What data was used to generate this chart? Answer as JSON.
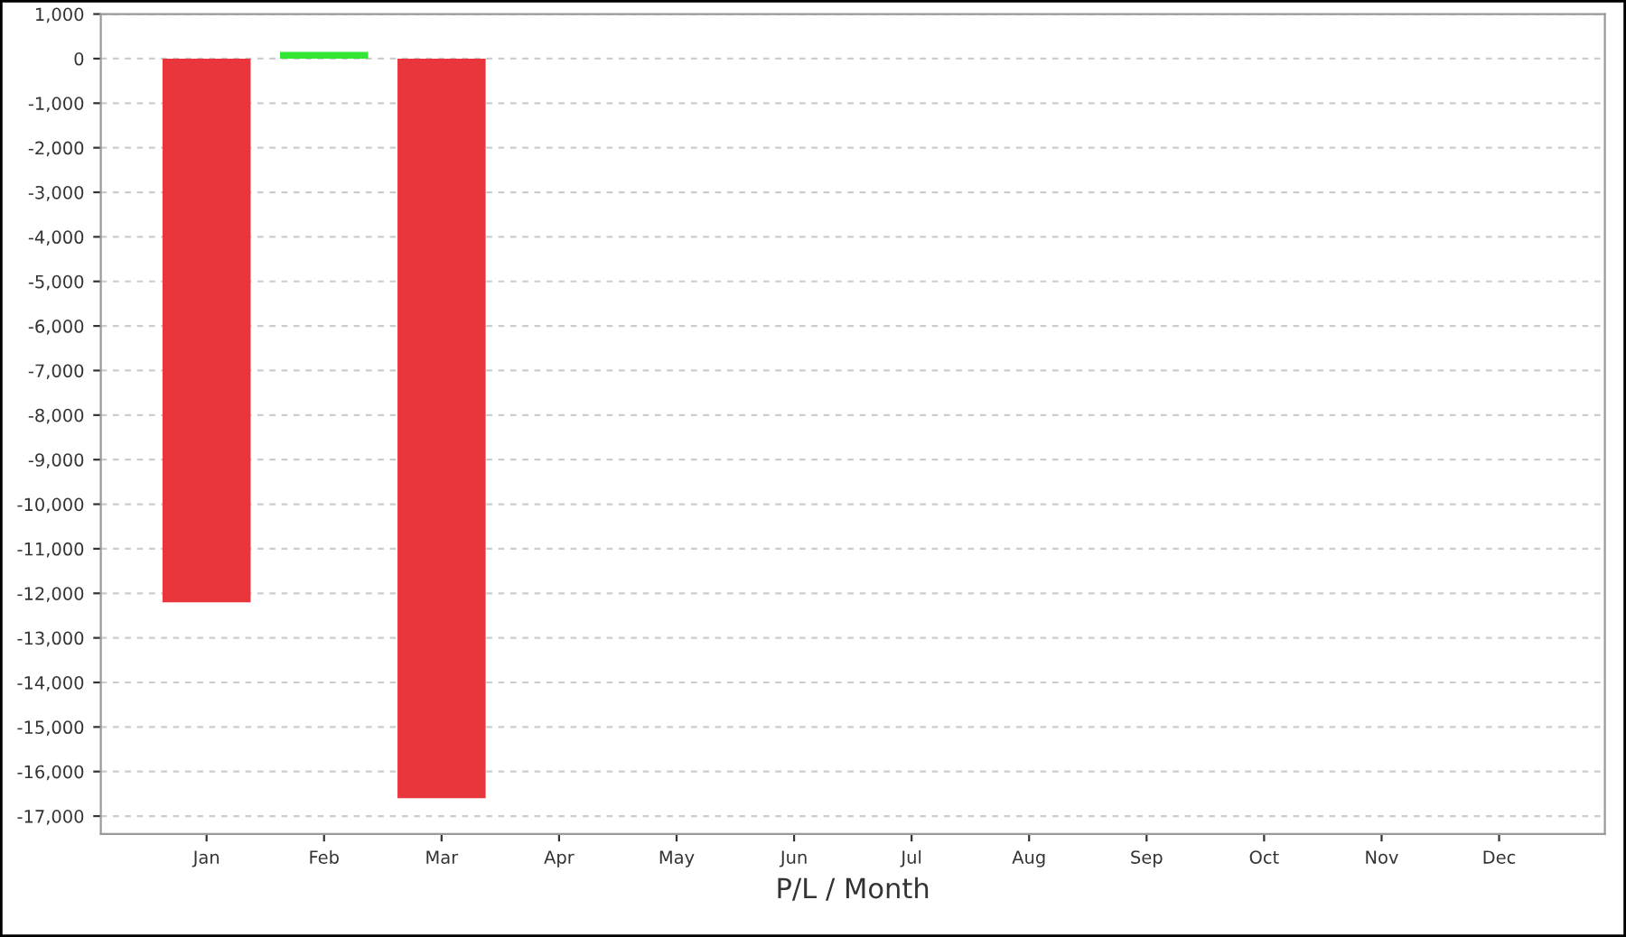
{
  "chart_data": {
    "type": "bar",
    "xlabel": "P/L / Month",
    "categories": [
      "Jan",
      "Feb",
      "Mar",
      "Apr",
      "May",
      "Jun",
      "Jul",
      "Aug",
      "Sep",
      "Oct",
      "Nov",
      "Dec"
    ],
    "values": [
      -12200,
      150,
      -16600,
      null,
      null,
      null,
      null,
      null,
      null,
      null,
      null,
      null
    ],
    "colors": [
      "#e8363c",
      "#33e633",
      "#e8363c",
      "#e8363c",
      "#e8363c",
      "#e8363c",
      "#e8363c",
      "#e8363c",
      "#e8363c",
      "#e8363c",
      "#e8363c",
      "#e8363c"
    ],
    "ylim": [
      -17400,
      1000
    ],
    "yticks": [
      {
        "value": 1000,
        "label": "1,000"
      },
      0,
      {
        "value": -1000,
        "label": "-1,000"
      },
      {
        "value": -2000,
        "label": "-2,000"
      },
      {
        "value": -3000,
        "label": "-3,000"
      },
      {
        "value": -4000,
        "label": "-4,000"
      },
      {
        "value": -5000,
        "label": "-5,000"
      },
      {
        "value": -6000,
        "label": "-6,000"
      },
      {
        "value": -7000,
        "label": "-7,000"
      },
      {
        "value": -8000,
        "label": "-8,000"
      },
      {
        "value": -9000,
        "label": "-9,000"
      },
      {
        "value": -10000,
        "label": "-10,000"
      },
      {
        "value": -11000,
        "label": "-11,000"
      },
      {
        "value": -12000,
        "label": "-12,000"
      },
      {
        "value": -13000,
        "label": "-13,000"
      },
      {
        "value": -14000,
        "label": "-14,000"
      },
      {
        "value": -15000,
        "label": "-15,000"
      },
      {
        "value": -16000,
        "label": "-16,000"
      },
      {
        "value": -17000,
        "label": "-17,000"
      }
    ],
    "grid": "y"
  }
}
